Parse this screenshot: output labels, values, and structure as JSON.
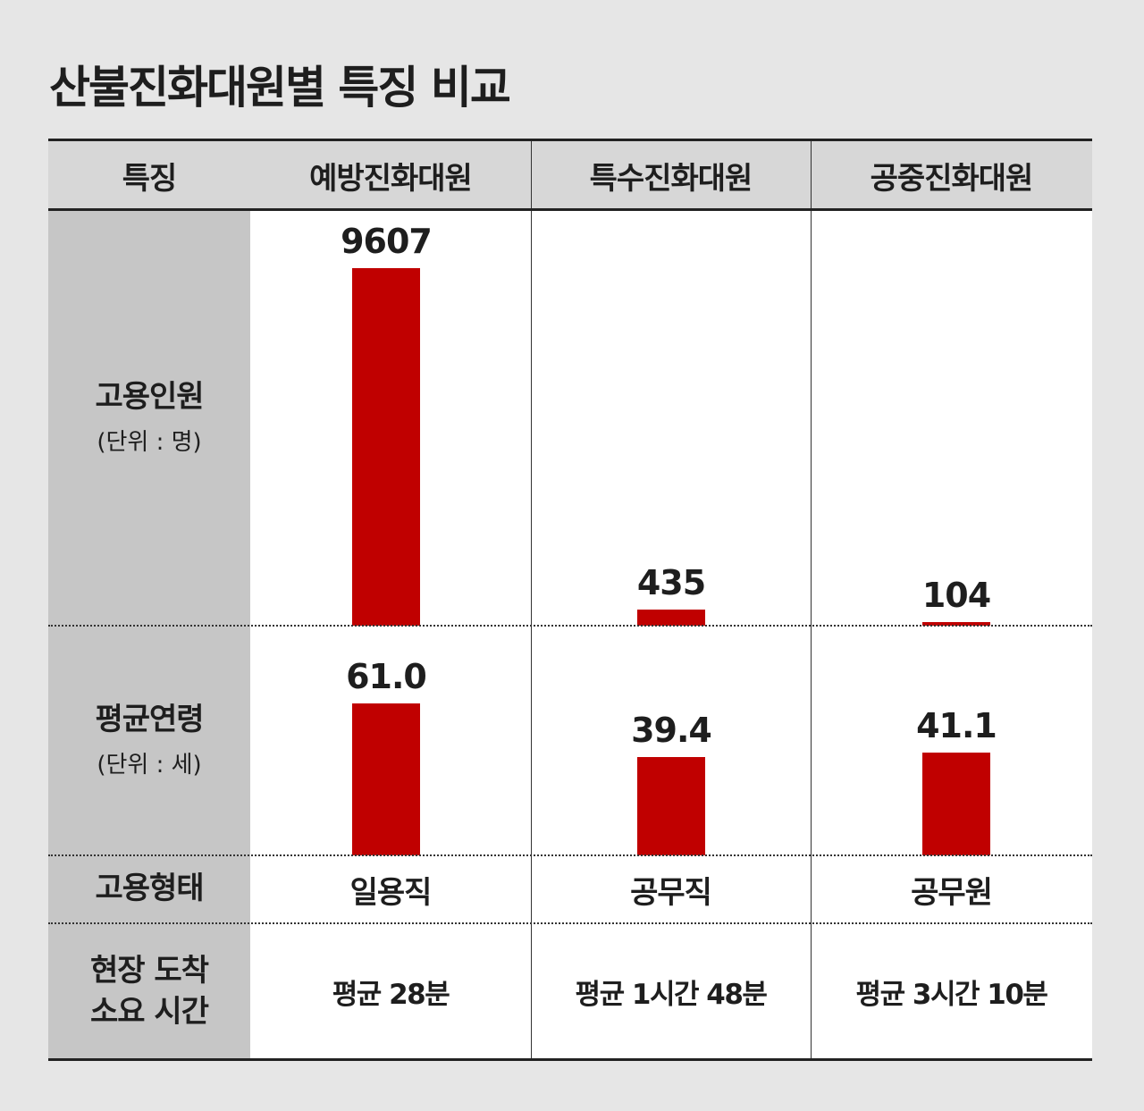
{
  "title": "산불진화대원별 특징 비교",
  "header": {
    "feature": "특징",
    "columns": [
      "예방진화대원",
      "특수진화대원",
      "공중진화대원"
    ]
  },
  "rows": {
    "employees": {
      "label": "고용인원",
      "unit": "(단위 : 명)"
    },
    "age": {
      "label": "평균연령",
      "unit": "(단위 : 세)"
    },
    "employment": {
      "label": "고용형태",
      "values": [
        "일용직",
        "공무직",
        "공무원"
      ]
    },
    "arrival": {
      "label_line1": "현장 도착",
      "label_line2": "소요 시간",
      "values": [
        "평균 28분",
        "평균 1시간 48분",
        "평균 3시간 10분"
      ]
    }
  },
  "chart_data": [
    {
      "type": "bar",
      "title": "고용인원",
      "ylabel": "(단위 : 명)",
      "categories": [
        "예방진화대원",
        "특수진화대원",
        "공중진화대원"
      ],
      "values": [
        9607,
        435,
        104
      ],
      "value_labels": [
        "9607",
        "435",
        "104"
      ],
      "ylim": [
        0,
        9607
      ]
    },
    {
      "type": "bar",
      "title": "평균연령",
      "ylabel": "(단위 : 세)",
      "categories": [
        "예방진화대원",
        "특수진화대원",
        "공중진화대원"
      ],
      "values": [
        61.0,
        39.4,
        41.1
      ],
      "value_labels": [
        "61.0",
        "39.4",
        "41.1"
      ],
      "ylim": [
        0,
        61.0
      ]
    }
  ],
  "colors": {
    "bar": "#c00000",
    "label_column": "#c6c6c6",
    "header": "#d7d7d7",
    "background": "#e6e6e6"
  }
}
